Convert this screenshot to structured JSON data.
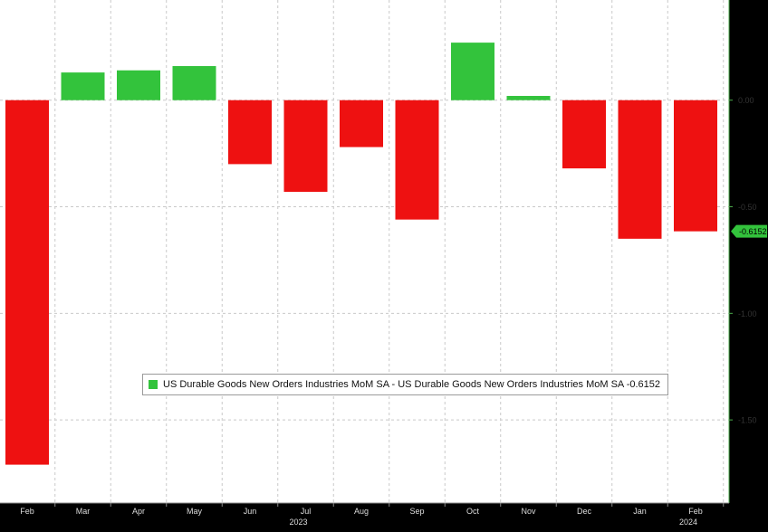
{
  "colors": {
    "background": "#ffffff",
    "positive": "#33c33c",
    "negative": "#ee1111",
    "grid": "#c9c9c9",
    "axis": "#4cae4c",
    "text": "#333333",
    "last_badge_bg": "#33c33c"
  },
  "legend": {
    "text": "US Durable Goods New Orders Industries MoM SA - US Durable Goods New Orders Industries MoM SA -0.6152"
  },
  "last_value_label": "-0.6152",
  "chart_data": {
    "type": "bar",
    "categories": [
      "Feb",
      "Mar",
      "Apr",
      "May",
      "Jun",
      "Jul",
      "Aug",
      "Sep",
      "Oct",
      "Nov",
      "Dec",
      "Jan",
      "Feb"
    ],
    "year_labels": [
      {
        "label": "2023",
        "at_category": 5
      },
      {
        "label": "2024",
        "at_category": 12
      }
    ],
    "series": [
      {
        "name": "US Durable Goods New Orders Industries MoM SA",
        "values": [
          -1.71,
          0.13,
          0.14,
          0.16,
          -0.3,
          -0.43,
          -0.22,
          -0.56,
          0.27,
          0.02,
          -0.32,
          -0.65,
          -0.6152
        ]
      }
    ],
    "y_ticks": [
      0.0,
      -0.5,
      -1.0,
      -1.5
    ],
    "y_tick_labels": [
      "0.00",
      "-0.50",
      "-1.00",
      "-1.50"
    ],
    "ylim": [
      -1.89,
      0.47
    ],
    "ylabel": "",
    "xlabel": "",
    "grid": true,
    "legend_position": "lower-middle"
  }
}
